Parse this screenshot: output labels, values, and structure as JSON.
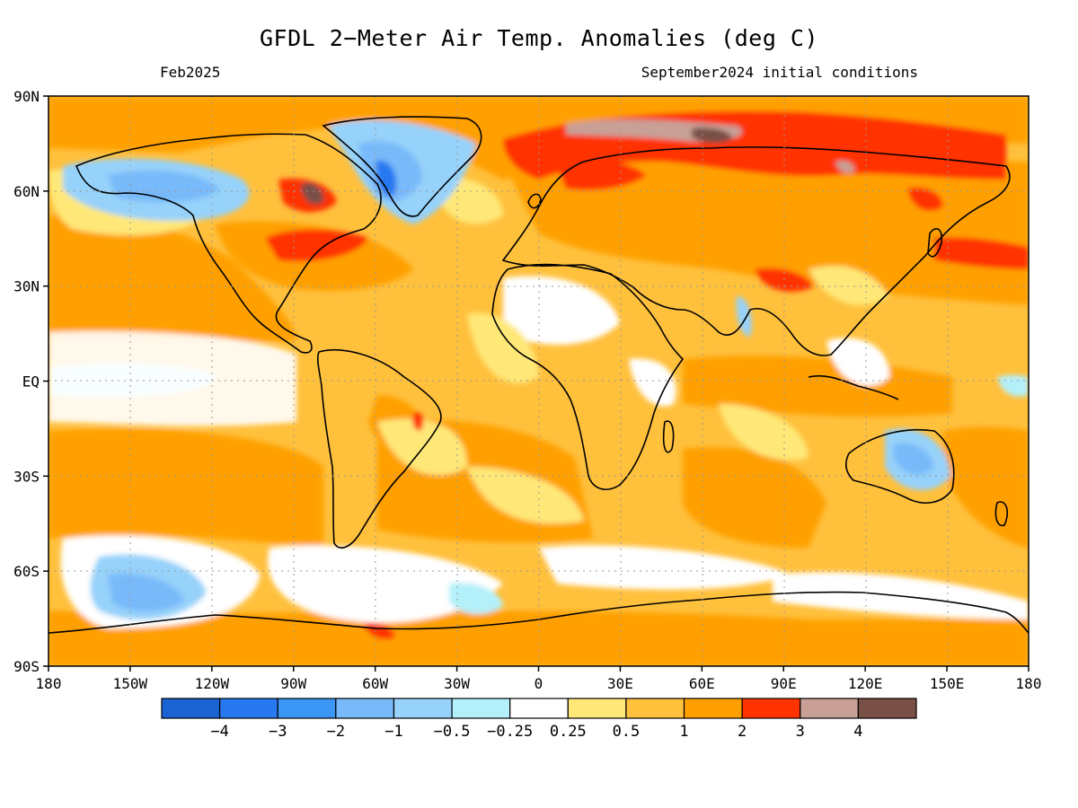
{
  "header": {
    "title": "GFDL 2−Meter Air Temp. Anomalies (deg C)",
    "valid_month": "Feb2025",
    "initial_conditions": "September2024 initial conditions"
  },
  "axes": {
    "lat_labels": [
      "90N",
      "60N",
      "30N",
      "EQ",
      "30S",
      "60S",
      "90S"
    ],
    "lon_labels": [
      "180",
      "150W",
      "120W",
      "90W",
      "60W",
      "30W",
      "0",
      "30E",
      "60E",
      "90E",
      "120E",
      "150E",
      "180"
    ]
  },
  "colorbar": {
    "bins": [
      {
        "color": "#1964d2"
      },
      {
        "color": "#2878f0"
      },
      {
        "color": "#3c96f5"
      },
      {
        "color": "#78b9fa"
      },
      {
        "color": "#96d2fa"
      },
      {
        "color": "#b4f0fa"
      },
      {
        "color": "#ffffff"
      },
      {
        "color": "#ffe878"
      },
      {
        "color": "#ffc03c"
      },
      {
        "color": "#ffa000"
      },
      {
        "color": "#ff3200"
      },
      {
        "color": "#c8a096"
      },
      {
        "color": "#785046"
      }
    ],
    "boundaries": [
      "−4",
      "−3",
      "−2",
      "−1",
      "−0.5",
      "−0.25",
      "0.25",
      "0.5",
      "1",
      "2",
      "3",
      "4"
    ]
  },
  "legend_colors": {
    "background_anomaly": "#ffc03c",
    "ocean_warm": "#ffa000"
  }
}
